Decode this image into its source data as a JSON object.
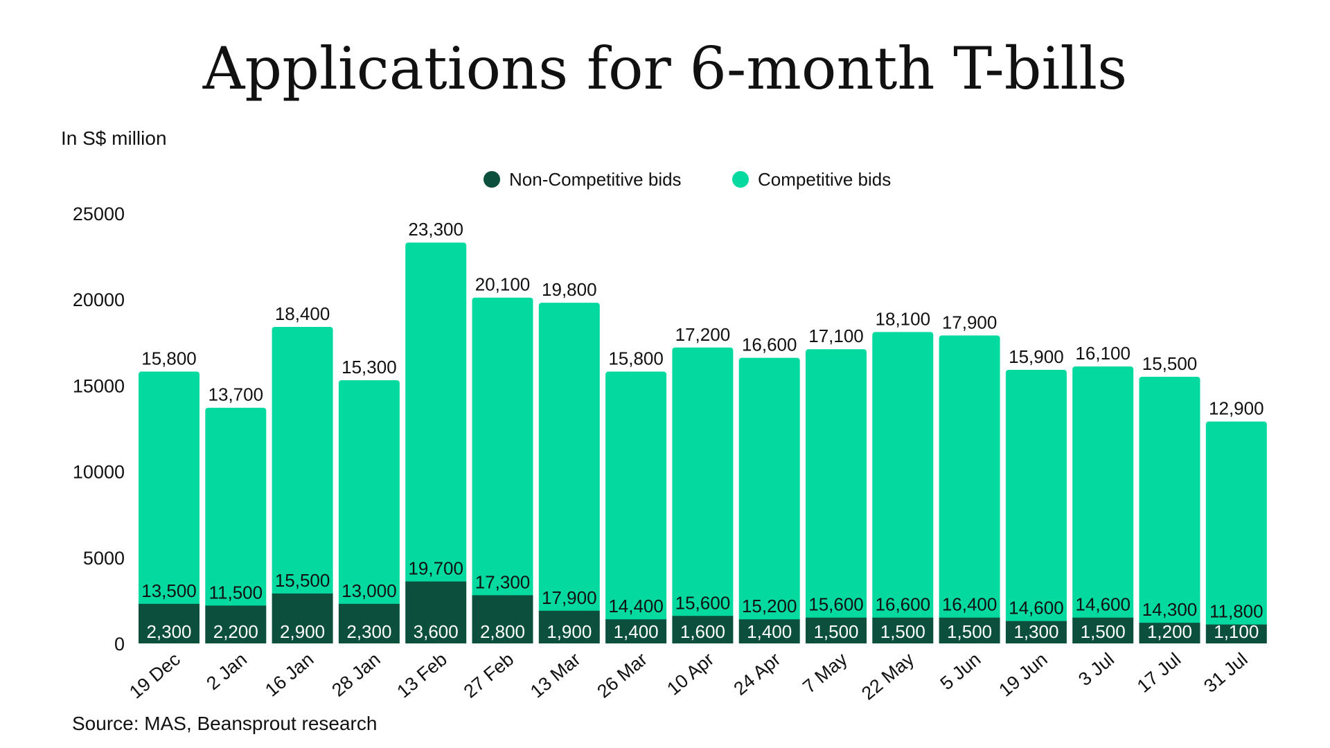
{
  "title": "Applications for 6-month T-bills",
  "unit_label": "In S$ million",
  "source": "Source: MAS, Beansprout research",
  "colors": {
    "non_competitive": "#0b4f3c",
    "competitive": "#04d9a0"
  },
  "chart_data": {
    "type": "bar",
    "stacked": true,
    "title": "Applications for 6-month T-bills",
    "xlabel": "",
    "ylabel": "In S$ million",
    "ylim": [
      0,
      25000
    ],
    "yticks": [
      "0",
      "5000",
      "10000",
      "15000",
      "20000",
      "25000"
    ],
    "legend_position": "top-center",
    "categories": [
      "19 Dec",
      "2 Jan",
      "16 Jan",
      "28 Jan",
      "13 Feb",
      "27 Feb",
      "13 Mar",
      "26 Mar",
      "10 Apr",
      "24 Apr",
      "7 May",
      "22 May",
      "5 Jun",
      "19 Jun",
      "3 Jul",
      "17 Jul",
      "31 Jul"
    ],
    "series": [
      {
        "name": "Non-Competitive bids",
        "values": [
          2300,
          2200,
          2900,
          2300,
          3600,
          2800,
          1900,
          1400,
          1600,
          1400,
          1500,
          1500,
          1500,
          1300,
          1500,
          1200,
          1100
        ],
        "labels": [
          "2,300",
          "2,200",
          "2,900",
          "2,300",
          "3,600",
          "2,800",
          "1,900",
          "1,400",
          "1,600",
          "1,400",
          "1,500",
          "1,500",
          "1,500",
          "1,300",
          "1,500",
          "1,200",
          "1,100"
        ]
      },
      {
        "name": "Competitive bids",
        "values": [
          13500,
          11500,
          15500,
          13000,
          19700,
          17300,
          17900,
          14400,
          15600,
          15200,
          15600,
          16600,
          16400,
          14600,
          14600,
          14300,
          11800
        ],
        "labels": [
          "13,500",
          "11,500",
          "15,500",
          "13,000",
          "19,700",
          "17,300",
          "17,900",
          "14,400",
          "15,600",
          "15,200",
          "15,600",
          "16,600",
          "16,400",
          "14,600",
          "14,600",
          "14,300",
          "11,800"
        ]
      }
    ],
    "totals": [
      15800,
      13700,
      18400,
      15300,
      23300,
      20100,
      19800,
      15800,
      17200,
      16600,
      17100,
      18100,
      17900,
      15900,
      16100,
      15500,
      12900
    ],
    "total_labels": [
      "15,800",
      "13,700",
      "18,400",
      "15,300",
      "23,300",
      "20,100",
      "19,800",
      "15,800",
      "17,200",
      "16,600",
      "17,100",
      "18,100",
      "17,900",
      "15,900",
      "16,100",
      "15,500",
      "12,900"
    ]
  }
}
